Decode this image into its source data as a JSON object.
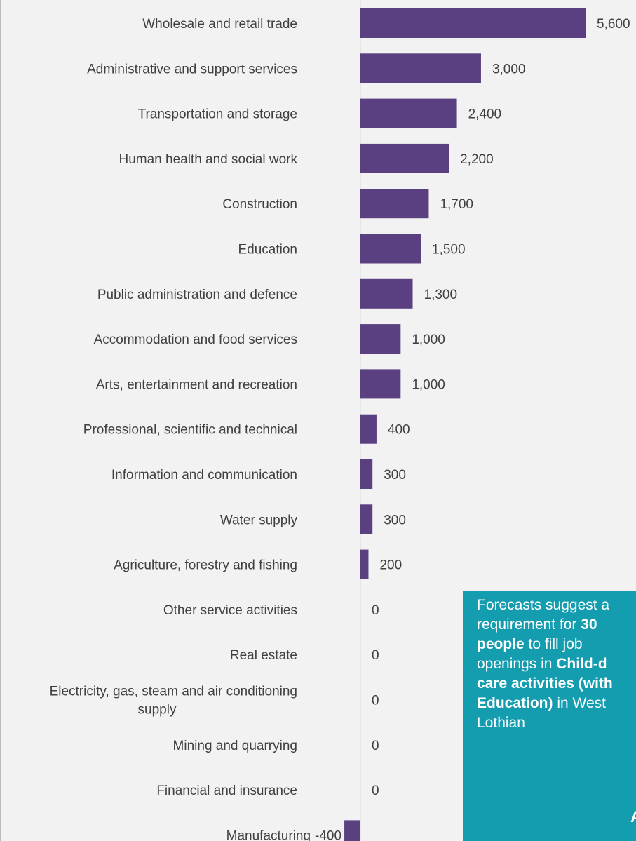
{
  "chart_data": {
    "type": "bar",
    "orientation": "horizontal",
    "title": "",
    "xlabel": "",
    "ylabel": "",
    "bar_color": "#5a4080",
    "categories": [
      "Wholesale and retail trade",
      "Administrative and support services",
      "Transportation and storage",
      "Human health and social work",
      "Construction",
      "Education",
      "Public administration and defence",
      "Accommodation and food services",
      "Arts, entertainment and recreation",
      "Professional, scientific and technical",
      "Information and communication",
      "Water supply",
      "Agriculture, forestry and fishing",
      "Other service activities",
      "Real estate",
      "Electricity, gas, steam and air conditioning supply",
      "Mining and quarrying",
      "Financial and insurance",
      "Manufacturing"
    ],
    "category_lines": [
      [
        "Wholesale and retail trade"
      ],
      [
        "Administrative and support services"
      ],
      [
        "Transportation and storage"
      ],
      [
        "Human health and social work"
      ],
      [
        "Construction"
      ],
      [
        "Education"
      ],
      [
        "Public administration and defence"
      ],
      [
        "Accommodation and food services"
      ],
      [
        "Arts, entertainment and recreation"
      ],
      [
        "Professional, scientific and technical"
      ],
      [
        "Information and communication"
      ],
      [
        "Water supply"
      ],
      [
        "Agriculture, forestry and fishing"
      ],
      [
        "Other service activities"
      ],
      [
        "Real estate"
      ],
      [
        "Electricity, gas, steam and air conditioning",
        "supply"
      ],
      [
        "Mining and quarrying"
      ],
      [
        "Financial and insurance"
      ],
      [
        "Manufacturing"
      ]
    ],
    "values": [
      5600,
      3000,
      2400,
      2200,
      1700,
      1500,
      1300,
      1000,
      1000,
      400,
      300,
      300,
      200,
      0,
      0,
      0,
      0,
      0,
      -400
    ],
    "value_labels": [
      "5,600",
      "3,000",
      "2,400",
      "2,200",
      "1,700",
      "1,500",
      "1,300",
      "1,000",
      "1,000",
      "400",
      "300",
      "300",
      "200",
      "0",
      "0",
      "0",
      "0",
      "0",
      "-400"
    ],
    "xlim": [
      -400,
      5600
    ]
  },
  "callout": {
    "line1": "Forecasts suggest a",
    "line2a": "requirement for ",
    "line2b": "30",
    "line3": "people",
    "line3b": " to fill job",
    "line4a": "openings in ",
    "line4b": "Child-d",
    "line5": "care activities (with",
    "line6a": "Education)",
    "line6b": " in West",
    "line7": "Lothian",
    "corner_glyph": "A",
    "background": "#149caf"
  }
}
